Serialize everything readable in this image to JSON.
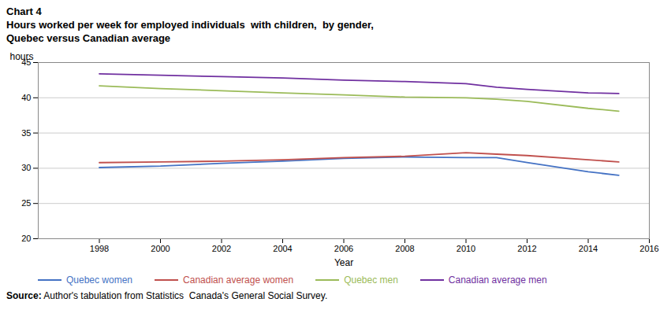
{
  "chart_data": {
    "type": "line",
    "title": "Chart 4",
    "subtitle": [
      "Hours worked per week for employed individuals  with children,  by gender,",
      "Quebec versus Canadian average"
    ],
    "x_label": "Year",
    "y_label": "hours",
    "x": [
      1998,
      2000,
      2002,
      2004,
      2006,
      2008,
      2010,
      2011,
      2012,
      2014,
      2015
    ],
    "series": [
      {
        "name": "Quebec women",
        "color": "#4472C4",
        "values": [
          30.1,
          30.3,
          30.7,
          31.0,
          31.4,
          31.6,
          31.5,
          31.5,
          30.8,
          29.5,
          29.0
        ]
      },
      {
        "name": "Canadian average women",
        "color": "#C0504D",
        "values": [
          30.8,
          30.9,
          31.0,
          31.2,
          31.5,
          31.7,
          32.2,
          32.0,
          31.8,
          31.2,
          30.9
        ]
      },
      {
        "name": "Quebec men",
        "color": "#9BBB59",
        "values": [
          41.7,
          41.3,
          41.0,
          40.7,
          40.4,
          40.1,
          40.0,
          39.8,
          39.5,
          38.5,
          38.1
        ]
      },
      {
        "name": "Canadian average men",
        "color": "#7030A0",
        "values": [
          43.4,
          43.2,
          43.0,
          42.8,
          42.5,
          42.3,
          42.0,
          41.5,
          41.2,
          40.7,
          40.6
        ]
      }
    ],
    "xlim": [
      1996,
      2016
    ],
    "xticks": [
      1998,
      2000,
      2002,
      2004,
      2006,
      2008,
      2010,
      2012,
      2014,
      2016
    ],
    "ylim": [
      20,
      45
    ],
    "yticks": [
      20,
      25,
      30,
      35,
      40,
      45
    ],
    "grid": "y",
    "legend": "bottom",
    "annotations": [
      "Source:",
      "Author's tabulation from Statistics  Canada's General Social Survey."
    ]
  }
}
